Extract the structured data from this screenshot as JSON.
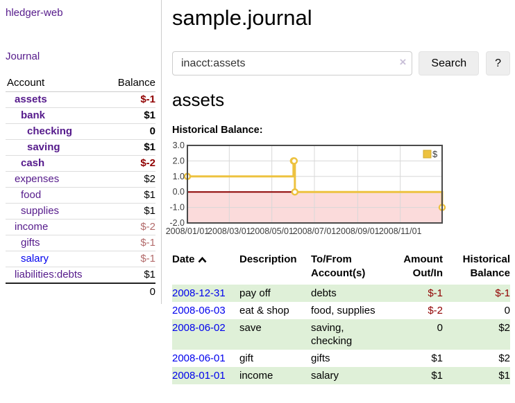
{
  "sidebar": {
    "app_link": "hledger-web",
    "journal_link": "Journal",
    "accounts": {
      "account_header": "Account",
      "balance_header": "Balance",
      "rows": [
        {
          "name": "assets",
          "balance": "$-1",
          "level": 1,
          "bold": true,
          "balance_style": "neg-strong",
          "link_style": "purple"
        },
        {
          "name": "bank",
          "balance": "$1",
          "level": 2,
          "bold": true,
          "balance_style": "",
          "link_style": "purple"
        },
        {
          "name": "checking",
          "balance": "0",
          "level": 3,
          "bold": true,
          "balance_style": "",
          "link_style": "purple"
        },
        {
          "name": "saving",
          "balance": "$1",
          "level": 3,
          "bold": true,
          "balance_style": "",
          "link_style": "purple"
        },
        {
          "name": "cash",
          "balance": "$-2",
          "level": 2,
          "bold": true,
          "balance_style": "neg-strong",
          "link_style": "purple"
        },
        {
          "name": "expenses",
          "balance": "$2",
          "level": 1,
          "bold": false,
          "balance_style": "",
          "link_style": "purple"
        },
        {
          "name": "food",
          "balance": "$1",
          "level": 2,
          "bold": false,
          "balance_style": "",
          "link_style": "purple"
        },
        {
          "name": "supplies",
          "balance": "$1",
          "level": 2,
          "bold": false,
          "balance_style": "",
          "link_style": "purple"
        },
        {
          "name": "income",
          "balance": "$-2",
          "level": 1,
          "bold": false,
          "balance_style": "neg-faded",
          "link_style": "purple"
        },
        {
          "name": "gifts",
          "balance": "$-1",
          "level": 2,
          "bold": false,
          "balance_style": "neg-faded",
          "link_style": "purple"
        },
        {
          "name": "salary",
          "balance": "$-1",
          "level": 2,
          "bold": false,
          "balance_style": "neg-faded",
          "link_style": "blue"
        },
        {
          "name": "liabilities:debts",
          "balance": "$1",
          "level": 1,
          "bold": false,
          "balance_style": "",
          "link_style": "purple"
        }
      ],
      "total": "0"
    }
  },
  "header": {
    "title": "sample.journal"
  },
  "search": {
    "value": "inacct:assets",
    "clear_icon": "×",
    "button_label": "Search",
    "help_label": "?"
  },
  "account_page": {
    "heading": "assets",
    "chart_label": "Historical Balance:"
  },
  "chart_data": {
    "type": "line",
    "step": true,
    "title": "Historical Balance",
    "series": [
      {
        "name": "$",
        "x": [
          "2008-01-01",
          "2008-06-01",
          "2008-06-02",
          "2008-06-03",
          "2008-12-31"
        ],
        "values": [
          1,
          2,
          2,
          0,
          -1
        ]
      }
    ],
    "x_range": [
      "2008-01-01",
      "2008-12-31"
    ],
    "x_ticks": [
      {
        "label": "2008/01/01",
        "date": "2008-01-01"
      },
      {
        "label": "2008/03/01",
        "date": "2008-03-01"
      },
      {
        "label": "2008/05/01",
        "date": "2008-05-01"
      },
      {
        "label": "2008/07/01",
        "date": "2008-07-01"
      },
      {
        "label": "2008/09/01",
        "date": "2008-09-01"
      },
      {
        "label": "2008/11/01",
        "date": "2008-11-01"
      }
    ],
    "y_ticks": [
      {
        "label": "3.0",
        "value": 3
      },
      {
        "label": "2.0",
        "value": 2
      },
      {
        "label": "1.0",
        "value": 1
      },
      {
        "label": "0.0",
        "value": 0
      },
      {
        "label": "-1.0",
        "value": -1
      },
      {
        "label": "-2.0",
        "value": -2
      }
    ],
    "ylim": [
      -2,
      3
    ],
    "grid": true,
    "legend": {
      "label": "$",
      "position": "top-right"
    },
    "colors": {
      "line": "#edc240",
      "marker_fill": "#ffffff",
      "negative_fill": "#fbdbdb",
      "zero_line": "#8b0000",
      "border": "#4a4a4a",
      "grid": "#d8d8d8",
      "tick_text": "#3c3c3c",
      "legend_box_border": "#d0a92e"
    }
  },
  "register": {
    "columns": {
      "date": "Date",
      "description": "Description",
      "accounts": "To/From Account(s)",
      "amount": "Amount Out/In",
      "balance": "Historical Balance"
    },
    "rows": [
      {
        "date": "2008-12-31",
        "description": "pay off",
        "accounts": "debts",
        "amount": "$-1",
        "amount_neg": true,
        "balance": "$-1",
        "balance_neg": true
      },
      {
        "date": "2008-06-03",
        "description": "eat & shop",
        "accounts": "food, supplies",
        "amount": "$-2",
        "amount_neg": true,
        "balance": "0",
        "balance_neg": false
      },
      {
        "date": "2008-06-02",
        "description": "save",
        "accounts": "saving, checking",
        "amount": "0",
        "amount_neg": false,
        "balance": "$2",
        "balance_neg": false
      },
      {
        "date": "2008-06-01",
        "description": "gift",
        "accounts": "gifts",
        "amount": "$1",
        "amount_neg": false,
        "balance": "$2",
        "balance_neg": false
      },
      {
        "date": "2008-01-01",
        "description": "income",
        "accounts": "salary",
        "amount": "$1",
        "amount_neg": false,
        "balance": "$1",
        "balance_neg": false
      }
    ]
  }
}
